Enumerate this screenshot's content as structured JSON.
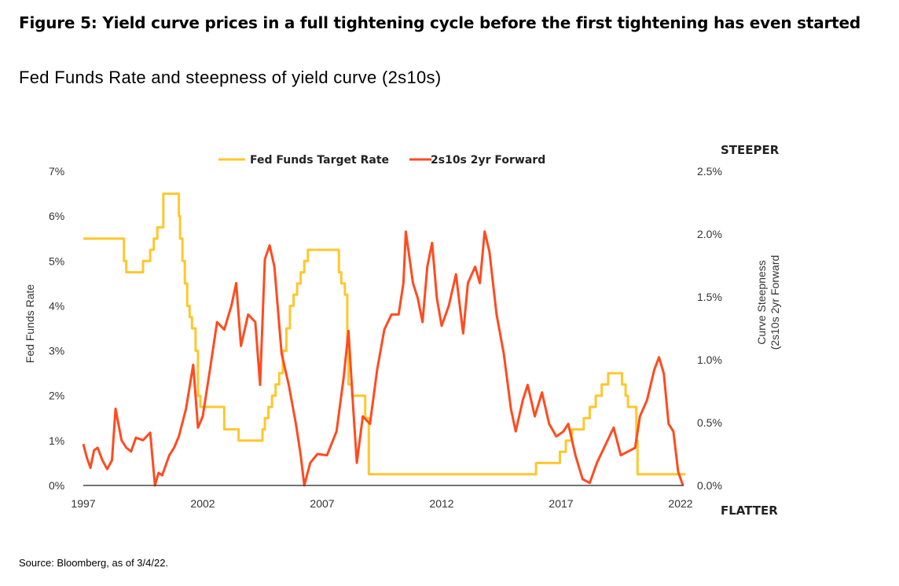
{
  "title": "Figure 5: Yield curve prices in a full tightening cycle before the first tightening has even started",
  "subtitle": "Fed Funds Rate and steepness of yield curve (2s10s)",
  "source": "Source: Bloomberg, as of 3/4/22.",
  "chart_data": {
    "type": "line",
    "xlim": [
      1997,
      2022
    ],
    "x_ticks": [
      "1997",
      "2002",
      "2007",
      "2012",
      "2017",
      "2022"
    ],
    "y_left": {
      "label": "Fed Funds Rate",
      "lim": [
        0,
        7
      ],
      "ticks": [
        "0%",
        "1%",
        "2%",
        "3%",
        "4%",
        "5%",
        "6%",
        "7%"
      ]
    },
    "y_right": {
      "label_line1": "Curve Steepness",
      "label_line2": "(2s10s 2yr Forward",
      "lim": [
        0,
        2.5
      ],
      "ticks": [
        "0.0%",
        "0.5%",
        "1.0%",
        "1.5%",
        "2.0%",
        "2.5%"
      ]
    },
    "annotations": {
      "top": "STEEPER",
      "bottom": "FLATTER"
    },
    "legend_position": "top",
    "grid": false,
    "series": [
      {
        "name": "Fed Funds Target Rate",
        "axis": "left",
        "color": "#FFC72C",
        "step": true,
        "x": [
          1997,
          1998.7,
          1998.8,
          1998.9,
          1999.5,
          1999.8,
          1999.95,
          2000.1,
          2000.35,
          2001.0,
          2001.05,
          2001.15,
          2001.25,
          2001.35,
          2001.45,
          2001.55,
          2001.7,
          2001.8,
          2001.9,
          2002.9,
          2003.5,
          2004.5,
          2004.6,
          2004.75,
          2004.9,
          2005.05,
          2005.2,
          2005.35,
          2005.5,
          2005.65,
          2005.8,
          2005.95,
          2006.1,
          2006.25,
          2006.4,
          2006.5,
          2007.7,
          2007.8,
          2007.95,
          2008.05,
          2008.1,
          2008.25,
          2008.8,
          2008.95,
          2015.95,
          2016.95,
          2017.2,
          2017.45,
          2017.95,
          2018.2,
          2018.45,
          2018.7,
          2018.97,
          2019.55,
          2019.7,
          2019.8,
          2020.15,
          2020.2,
          2022.2
        ],
        "y": [
          5.5,
          5.0,
          4.75,
          4.75,
          5.0,
          5.25,
          5.5,
          5.75,
          6.5,
          6.0,
          5.5,
          5.0,
          4.5,
          4.0,
          3.75,
          3.5,
          3.0,
          2.0,
          1.75,
          1.25,
          1.0,
          1.25,
          1.5,
          1.75,
          2.0,
          2.25,
          2.5,
          3.0,
          3.5,
          4.0,
          4.25,
          4.5,
          4.75,
          5.0,
          5.25,
          5.25,
          4.75,
          4.5,
          4.25,
          3.0,
          2.25,
          2.0,
          1.5,
          0.25,
          0.5,
          0.75,
          1.0,
          1.25,
          1.5,
          1.75,
          2.0,
          2.25,
          2.5,
          2.25,
          2.0,
          1.75,
          1.0,
          0.25,
          0.25
        ]
      },
      {
        "name": "2s10s 2yr Forward",
        "axis": "right",
        "color": "#FF4B1F",
        "x": [
          1997,
          1997.15,
          1997.3,
          1997.45,
          1997.6,
          1997.8,
          1998.0,
          1998.2,
          1998.35,
          1998.6,
          1998.8,
          1999.0,
          1999.2,
          1999.5,
          1999.8,
          2000.0,
          2000.15,
          2000.3,
          2000.6,
          2000.8,
          2001.0,
          2001.3,
          2001.6,
          2001.8,
          2002.0,
          2002.3,
          2002.6,
          2002.9,
          2003.2,
          2003.4,
          2003.6,
          2003.9,
          2004.2,
          2004.4,
          2004.6,
          2004.8,
          2005.0,
          2005.3,
          2005.6,
          2005.9,
          2006.1,
          2006.25,
          2006.5,
          2006.8,
          2007.2,
          2007.6,
          2007.9,
          2008.1,
          2008.3,
          2008.45,
          2008.7,
          2009.0,
          2009.3,
          2009.6,
          2009.9,
          2010.2,
          2010.4,
          2010.5,
          2010.8,
          2011.0,
          2011.2,
          2011.4,
          2011.6,
          2011.8,
          2012.0,
          2012.3,
          2012.6,
          2012.9,
          2013.1,
          2013.4,
          2013.6,
          2013.8,
          2014.0,
          2014.3,
          2014.6,
          2014.9,
          2015.1,
          2015.4,
          2015.6,
          2015.9,
          2016.2,
          2016.5,
          2016.8,
          2017.1,
          2017.3,
          2017.6,
          2017.9,
          2018.2,
          2018.5,
          2018.8,
          2019.2,
          2019.5,
          2019.8,
          2020.1,
          2020.3,
          2020.6,
          2020.9,
          2021.1,
          2021.3,
          2021.5,
          2021.7,
          2021.9,
          2022.1
        ],
        "y": [
          0.33,
          0.22,
          0.14,
          0.28,
          0.3,
          0.2,
          0.13,
          0.2,
          0.61,
          0.36,
          0.3,
          0.27,
          0.38,
          0.36,
          0.42,
          0.0,
          0.1,
          0.08,
          0.24,
          0.3,
          0.39,
          0.61,
          0.96,
          0.46,
          0.55,
          0.92,
          1.3,
          1.24,
          1.43,
          1.61,
          1.11,
          1.36,
          1.3,
          0.8,
          1.8,
          1.91,
          1.74,
          1.05,
          0.8,
          0.49,
          0.24,
          0.0,
          0.18,
          0.25,
          0.24,
          0.43,
          0.86,
          1.23,
          0.61,
          0.18,
          0.55,
          0.49,
          0.92,
          1.24,
          1.36,
          1.36,
          1.61,
          2.02,
          1.61,
          1.49,
          1.3,
          1.74,
          1.93,
          1.49,
          1.27,
          1.43,
          1.68,
          1.21,
          1.61,
          1.74,
          1.61,
          2.02,
          1.86,
          1.36,
          1.05,
          0.61,
          0.43,
          0.68,
          0.8,
          0.55,
          0.74,
          0.49,
          0.39,
          0.43,
          0.49,
          0.24,
          0.05,
          0.02,
          0.18,
          0.3,
          0.46,
          0.24,
          0.27,
          0.3,
          0.55,
          0.68,
          0.92,
          1.02,
          0.89,
          0.49,
          0.43,
          0.11,
          0.0
        ]
      }
    ]
  }
}
